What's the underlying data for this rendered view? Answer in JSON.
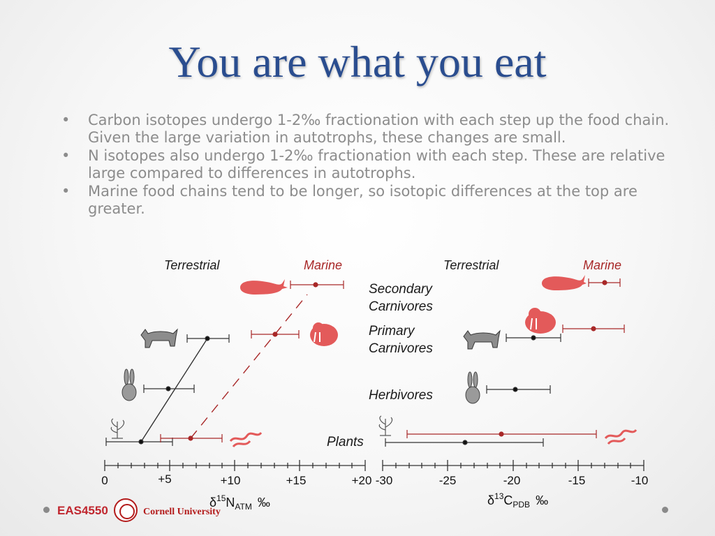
{
  "slide": {
    "title": "You are what you eat",
    "bullets": [
      "Carbon isotopes undergo 1-2‰ fractionation with each step up the food chain. Given the large variation in autotrophs, these changes are small.",
      "N isotopes also undergo 1-2‰ fractionation with each step. These are relative large compared to differences in autotrophs.",
      "Marine food chains tend to be longer, so isotopic differences at the top are greater."
    ],
    "bullet_symbol": "•"
  },
  "diagram": {
    "left_header_terrestrial": "Terrestrial",
    "left_header_marine": "Marine",
    "right_header_terrestrial": "Terrestrial",
    "right_header_marine": "Marine",
    "levels": {
      "secondary": [
        "Secondary",
        "Carnivores"
      ],
      "primary": [
        "Primary",
        "Carnivores"
      ],
      "herbivores": "Herbivores",
      "plants": "Plants"
    },
    "n_axis": {
      "ticks": [
        "0",
        "+5",
        "+10",
        "+15",
        "+20"
      ],
      "label_main": "δ",
      "label_sup": "15",
      "label_N": "N",
      "label_sub": "ATM",
      "label_unit": "‰"
    },
    "c_axis": {
      "ticks": [
        "-30",
        "-25",
        "-20",
        "-15",
        "-10"
      ],
      "label_main": "δ",
      "label_sup": "13",
      "label_C": "C",
      "label_sub": "PDB",
      "label_unit": "‰"
    },
    "colors": {
      "terrestrial": "#1a1a1a",
      "marine": "#a82828",
      "marine_icon": "#e35a5a",
      "terrestrial_icon": "#777777"
    }
  },
  "footer": {
    "course": "EAS4550",
    "university": "Cornell University"
  }
}
